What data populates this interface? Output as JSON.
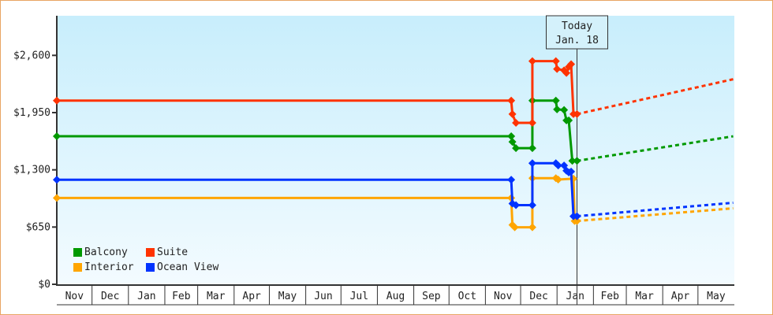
{
  "chart_data": {
    "type": "line",
    "title": "",
    "xlabel": "",
    "ylabel": "",
    "ylim": [
      0,
      3050
    ],
    "y_ticks": [
      "$0",
      "$650",
      "$1,300",
      "$1,950",
      "$2,600"
    ],
    "y_tick_values": [
      0,
      650,
      1300,
      1950,
      2600
    ],
    "x_ticks": [
      "Nov",
      "Dec",
      "Jan",
      "Feb",
      "Mar",
      "Apr",
      "May",
      "Jun",
      "Jul",
      "Aug",
      "Sep",
      "Oct",
      "Nov",
      "Dec",
      "Jan",
      "Feb",
      "Mar",
      "Apr",
      "May"
    ],
    "x_point_format": "[month index into x_ticks, day of month, price in $]",
    "grid": false,
    "legend_placement": "bottom-left",
    "today_marker": {
      "line1": "Today",
      "line2": "Jan. 18",
      "month_index": 14,
      "day": 18
    },
    "series": [
      {
        "name": "Interior",
        "color": "#ffa500",
        "points": [
          [
            0,
            1,
            980
          ],
          [
            12,
            23,
            980
          ],
          [
            12,
            24,
            674
          ],
          [
            12,
            26,
            647
          ],
          [
            13,
            11,
            647
          ],
          [
            13,
            11,
            1205
          ],
          [
            13,
            31,
            1205
          ],
          [
            14,
            2,
            1190
          ],
          [
            14,
            15,
            1200
          ],
          [
            14,
            16,
            719
          ],
          [
            14,
            18,
            719
          ]
        ],
        "projection": [
          [
            14,
            18,
            719
          ],
          [
            18,
            31,
            863
          ]
        ]
      },
      {
        "name": "Ocean View",
        "color": "#0033ff",
        "points": [
          [
            0,
            1,
            1187
          ],
          [
            12,
            23,
            1187
          ],
          [
            12,
            24,
            917
          ],
          [
            12,
            27,
            899
          ],
          [
            13,
            11,
            899
          ],
          [
            13,
            11,
            1375
          ],
          [
            13,
            31,
            1375
          ],
          [
            14,
            2,
            1350
          ],
          [
            14,
            7,
            1350
          ],
          [
            14,
            9,
            1290
          ],
          [
            14,
            11,
            1270
          ],
          [
            14,
            13,
            1280
          ],
          [
            14,
            15,
            773
          ],
          [
            14,
            18,
            773
          ]
        ],
        "projection": [
          [
            14,
            18,
            773
          ],
          [
            18,
            31,
            926
          ]
        ]
      },
      {
        "name": "Balcony",
        "color": "#009900",
        "points": [
          [
            0,
            1,
            1681
          ],
          [
            12,
            23,
            1681
          ],
          [
            12,
            24,
            1618
          ],
          [
            12,
            27,
            1546
          ],
          [
            13,
            11,
            1546
          ],
          [
            13,
            11,
            2086
          ],
          [
            13,
            31,
            2086
          ],
          [
            14,
            1,
            1987
          ],
          [
            14,
            7,
            1980
          ],
          [
            14,
            9,
            1861
          ],
          [
            14,
            11,
            1861
          ],
          [
            14,
            14,
            1402
          ],
          [
            14,
            18,
            1402
          ]
        ],
        "projection": [
          [
            14,
            18,
            1402
          ],
          [
            18,
            31,
            1681
          ]
        ]
      },
      {
        "name": "Suite",
        "color": "#ff3300",
        "points": [
          [
            0,
            1,
            2086
          ],
          [
            12,
            23,
            2086
          ],
          [
            12,
            24,
            1933
          ],
          [
            12,
            27,
            1834
          ],
          [
            13,
            11,
            1834
          ],
          [
            13,
            11,
            2535
          ],
          [
            13,
            31,
            2535
          ],
          [
            14,
            1,
            2445
          ],
          [
            14,
            7,
            2430
          ],
          [
            14,
            9,
            2400
          ],
          [
            14,
            11,
            2470
          ],
          [
            14,
            13,
            2500
          ],
          [
            14,
            15,
            1933
          ],
          [
            14,
            18,
            1933
          ]
        ],
        "projection": [
          [
            14,
            18,
            1933
          ],
          [
            18,
            31,
            2329
          ]
        ]
      }
    ]
  }
}
